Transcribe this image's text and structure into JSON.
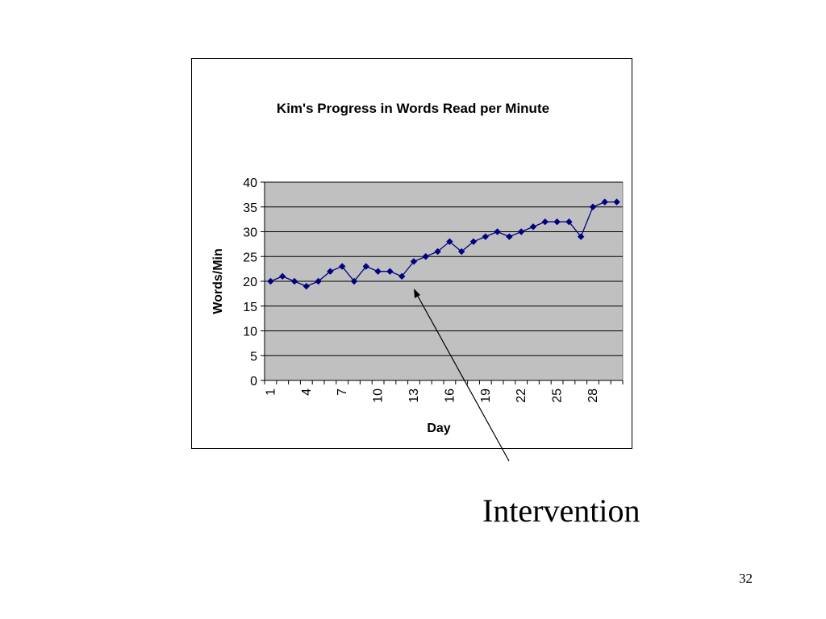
{
  "slide": {
    "annotation": "Intervention",
    "page_number": "32"
  },
  "colors": {
    "plot_background": "#c0c0c0",
    "series_color": "#000080",
    "gridline": "#000000",
    "arrow": "#000000"
  },
  "chart_data": {
    "type": "line",
    "title": "Kim's Progress in Words Read per Minute",
    "xlabel": "Day",
    "ylabel": "Words/Min",
    "ylim": [
      0,
      40
    ],
    "yticks": [
      0,
      5,
      10,
      15,
      20,
      25,
      30,
      35,
      40
    ],
    "x": [
      1,
      2,
      3,
      4,
      5,
      6,
      7,
      8,
      9,
      10,
      11,
      12,
      13,
      14,
      15,
      16,
      17,
      18,
      19,
      20,
      21,
      22,
      23,
      24,
      25,
      26,
      27,
      28,
      29,
      30
    ],
    "xtick_labels": [
      "1",
      "4",
      "7",
      "10",
      "13",
      "16",
      "19",
      "22",
      "25",
      "28"
    ],
    "series": [
      {
        "marker": "diamond",
        "values": [
          20,
          21,
          20,
          19,
          20,
          22,
          23,
          20,
          23,
          22,
          22,
          21,
          24,
          25,
          26,
          28,
          26,
          28,
          29,
          30,
          29,
          30,
          31,
          32,
          32,
          32,
          29,
          35,
          36,
          36
        ]
      }
    ],
    "grid": "horizontal major gridlines",
    "legend": "none",
    "annotation": {
      "text": "Intervention",
      "points_to_day": 13
    }
  }
}
